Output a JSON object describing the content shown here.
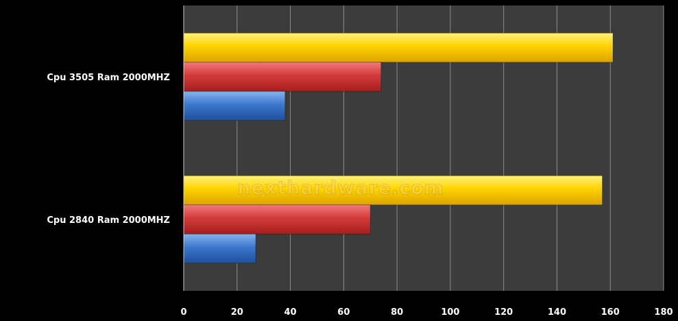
{
  "chart_data": {
    "type": "bar",
    "orientation": "horizontal",
    "title": "",
    "xlabel": "",
    "ylabel": "",
    "categories": [
      "Cpu 3505 Ram 2000MHZ",
      "Cpu 2840 Ram 2000MHZ"
    ],
    "series": [
      {
        "values": [
          161,
          157
        ],
        "color": "#ffcc00"
      },
      {
        "values": [
          74,
          70
        ],
        "color": "#d43a3a"
      },
      {
        "values": [
          38,
          27
        ],
        "color": "#3a74c8"
      }
    ],
    "xlim": [
      0,
      180
    ],
    "x_ticks": [
      "0",
      "20",
      "40",
      "60",
      "80",
      "100",
      "120",
      "140",
      "160",
      "180"
    ],
    "grid": true,
    "legend": "none",
    "background": "#000000",
    "plot_background": "#3c3c3c"
  },
  "watermark": "nexthardware.com"
}
